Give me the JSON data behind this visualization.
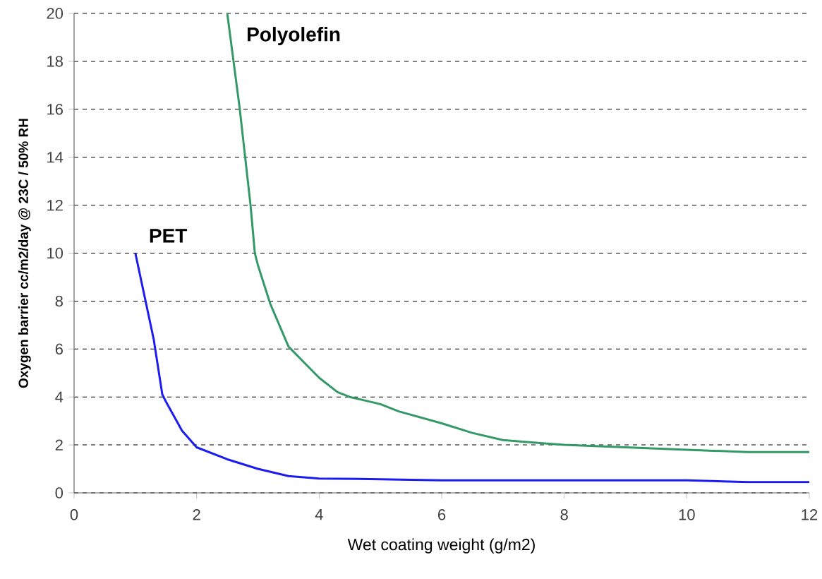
{
  "chart_data": {
    "type": "line",
    "xlabel": "Wet coating weight (g/m2)",
    "ylabel": "Oxygen barrier cc/m2/day @ 23C / 50% RH",
    "series": [
      {
        "name": "PET",
        "color": "#1c1cf0",
        "x": [
          1,
          1.15,
          1.3,
          1.44,
          1.5,
          1.76,
          2,
          2.5,
          3,
          3.5,
          4,
          5,
          6,
          8,
          10,
          11,
          12
        ],
        "values": [
          10,
          8.2,
          6.4,
          4.1,
          3.8,
          2.6,
          1.9,
          1.4,
          1.0,
          0.7,
          0.6,
          0.57,
          0.52,
          0.52,
          0.52,
          0.45,
          0.45
        ]
      },
      {
        "name": "Polyolefin",
        "color": "#339966",
        "x": [
          2.5,
          2.7,
          2.88,
          2.95,
          3,
          3.2,
          3.5,
          4,
          4.3,
          4.5,
          5,
          5.3,
          6,
          6.5,
          7,
          7.5,
          8,
          9,
          10,
          11,
          12
        ],
        "values": [
          20,
          16.1,
          12,
          10,
          9.5,
          7.9,
          6.1,
          4.8,
          4.2,
          4.0,
          3.7,
          3.4,
          2.9,
          2.5,
          2.2,
          2.1,
          2.0,
          1.9,
          1.8,
          1.7,
          1.7
        ]
      }
    ],
    "xlim": [
      0,
      12
    ],
    "ylim": [
      0,
      20
    ],
    "xticks": [
      0,
      2,
      4,
      6,
      8,
      10,
      12
    ],
    "yticks": [
      0,
      2,
      4,
      6,
      8,
      10,
      12,
      14,
      16,
      18,
      20
    ],
    "grid": "y"
  }
}
